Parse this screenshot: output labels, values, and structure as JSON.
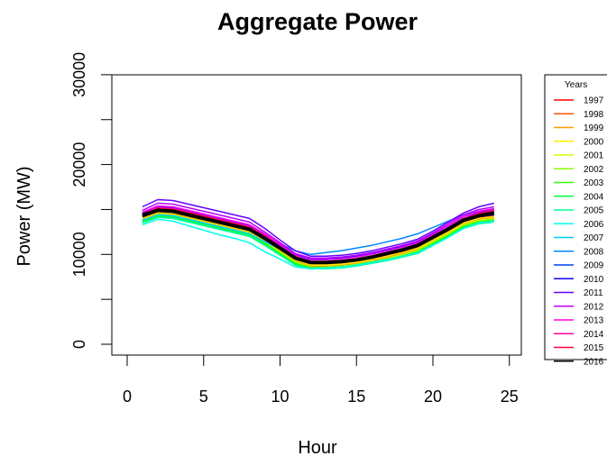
{
  "chart_data": {
    "type": "line",
    "title": "Aggregate Power",
    "xlabel": "Hour",
    "ylabel": "Power (MW)",
    "xlim": [
      0,
      25
    ],
    "ylim": [
      0,
      30000
    ],
    "xticks": [
      "0",
      "5",
      "10",
      "15",
      "20",
      "25"
    ],
    "yticks": [
      "0",
      "10000",
      "20000",
      "30000"
    ],
    "legend_title": "Years",
    "legend_position": "right",
    "grid": false,
    "x": [
      1,
      2,
      3,
      4,
      5,
      6,
      7,
      8,
      9,
      10,
      11,
      12,
      13,
      14,
      15,
      16,
      17,
      18,
      19,
      20,
      21,
      22,
      23,
      24
    ],
    "series": [
      {
        "name": "1997",
        "color": "#FF0000",
        "values": [
          14200,
          14800,
          14700,
          14300,
          13900,
          13500,
          13100,
          12700,
          11700,
          10500,
          9400,
          8800,
          8800,
          8900,
          9100,
          9400,
          9800,
          10300,
          10800,
          11700,
          12600,
          13600,
          14100,
          14300
        ]
      },
      {
        "name": "1998",
        "color": "#FF5500",
        "values": [
          14000,
          14600,
          14500,
          14100,
          13700,
          13300,
          12900,
          12500,
          11500,
          10400,
          9300,
          8700,
          8700,
          8800,
          9000,
          9300,
          9700,
          10100,
          10600,
          11500,
          12400,
          13400,
          13900,
          14100
        ]
      },
      {
        "name": "1999",
        "color": "#FF9900",
        "values": [
          14300,
          14900,
          14800,
          14400,
          14000,
          13600,
          13200,
          12800,
          11800,
          10600,
          9500,
          8900,
          8900,
          9000,
          9200,
          9500,
          9900,
          10400,
          10900,
          11800,
          12700,
          13700,
          14200,
          14400
        ]
      },
      {
        "name": "2000",
        "color": "#FFEE00",
        "values": [
          14100,
          14700,
          14600,
          14200,
          13800,
          13400,
          13000,
          12600,
          11600,
          10500,
          9400,
          8800,
          8800,
          8900,
          9100,
          9400,
          9800,
          10200,
          10700,
          11600,
          12500,
          13500,
          14000,
          14200
        ]
      },
      {
        "name": "2001",
        "color": "#CCFF00",
        "values": [
          13900,
          14500,
          14400,
          14000,
          13600,
          13200,
          12800,
          12400,
          11400,
          10300,
          9200,
          8600,
          8600,
          8700,
          8900,
          9200,
          9600,
          10000,
          10500,
          11400,
          12300,
          13300,
          13800,
          14000
        ]
      },
      {
        "name": "2002",
        "color": "#88FF00",
        "values": [
          13800,
          14400,
          14300,
          13900,
          13500,
          13100,
          12700,
          12300,
          11300,
          10200,
          9100,
          8600,
          8600,
          8700,
          8900,
          9200,
          9500,
          9900,
          10400,
          11300,
          12200,
          13200,
          13700,
          13900
        ]
      },
      {
        "name": "2003",
        "color": "#33FF00",
        "values": [
          13700,
          14300,
          14200,
          13800,
          13400,
          13000,
          12600,
          12200,
          11200,
          10100,
          9000,
          8500,
          8500,
          8600,
          8800,
          9100,
          9400,
          9800,
          10300,
          11200,
          12100,
          13100,
          13600,
          13800
        ]
      },
      {
        "name": "2004",
        "color": "#00FF44",
        "values": [
          13600,
          14200,
          14100,
          13700,
          13300,
          12900,
          12500,
          12100,
          11100,
          10000,
          8900,
          8500,
          8500,
          8600,
          8800,
          9100,
          9400,
          9800,
          10200,
          11100,
          12000,
          13000,
          13500,
          13700
        ]
      },
      {
        "name": "2005",
        "color": "#00FF99",
        "values": [
          13500,
          14100,
          14000,
          13600,
          13200,
          12800,
          12400,
          12000,
          11000,
          9900,
          8800,
          8400,
          8400,
          8500,
          8700,
          9000,
          9300,
          9700,
          10100,
          11000,
          11900,
          12900,
          13400,
          13600
        ]
      },
      {
        "name": "2006",
        "color": "#00FFEE",
        "values": [
          13300,
          13900,
          13700,
          13200,
          12700,
          12200,
          11800,
          11300,
          10300,
          9500,
          8600,
          8400,
          8500,
          8600,
          8800,
          9100,
          9400,
          9800,
          10200,
          11000,
          11900,
          12900,
          13500,
          13700
        ]
      },
      {
        "name": "2007",
        "color": "#00CCFF",
        "values": [
          13800,
          14400,
          14300,
          13900,
          13500,
          13100,
          12700,
          12300,
          11400,
          10600,
          9700,
          9400,
          9500,
          9700,
          9900,
          10200,
          10500,
          10900,
          11400,
          12200,
          13100,
          14000,
          14400,
          14600
        ]
      },
      {
        "name": "2008",
        "color": "#0088FF",
        "values": [
          14500,
          15200,
          15100,
          14700,
          14300,
          13900,
          13500,
          13100,
          12100,
          11200,
          10400,
          10000,
          10200,
          10400,
          10700,
          11000,
          11400,
          11800,
          12300,
          13000,
          13700,
          14400,
          14800,
          15000
        ]
      },
      {
        "name": "2009",
        "color": "#0044FF",
        "values": [
          14200,
          14900,
          14800,
          14400,
          14000,
          13600,
          13200,
          12800,
          11900,
          11000,
          10000,
          9500,
          9500,
          9600,
          9800,
          10100,
          10400,
          10800,
          11300,
          12100,
          12900,
          13800,
          14200,
          14400
        ]
      },
      {
        "name": "2010",
        "color": "#1100FF",
        "values": [
          14600,
          15300,
          15200,
          14800,
          14400,
          14000,
          13600,
          13200,
          12200,
          11100,
          10000,
          9500,
          9500,
          9600,
          9800,
          10100,
          10500,
          10900,
          11400,
          12300,
          13200,
          14200,
          14700,
          14900
        ]
      },
      {
        "name": "2011",
        "color": "#6600FF",
        "values": [
          15300,
          16100,
          16000,
          15600,
          15200,
          14800,
          14400,
          14000,
          12900,
          11600,
          10400,
          9800,
          9800,
          9900,
          10100,
          10400,
          10800,
          11200,
          11700,
          12600,
          13600,
          14600,
          15300,
          15700
        ]
      },
      {
        "name": "2012",
        "color": "#BB00FF",
        "values": [
          14900,
          15700,
          15600,
          15200,
          14800,
          14400,
          14000,
          13600,
          12500,
          11300,
          10100,
          9600,
          9600,
          9700,
          9900,
          10200,
          10600,
          11000,
          11500,
          12400,
          13400,
          14400,
          15000,
          15300
        ]
      },
      {
        "name": "2013",
        "color": "#FF00EE",
        "values": [
          14700,
          15400,
          15300,
          14900,
          14500,
          14100,
          13700,
          13300,
          12300,
          11100,
          9900,
          9400,
          9400,
          9500,
          9700,
          10000,
          10400,
          10800,
          11300,
          12200,
          13200,
          14200,
          14800,
          15100
        ]
      },
      {
        "name": "2014",
        "color": "#FF0099",
        "values": [
          14500,
          15200,
          15100,
          14700,
          14300,
          13900,
          13500,
          13100,
          12100,
          10900,
          9700,
          9200,
          9200,
          9300,
          9500,
          9800,
          10200,
          10600,
          11100,
          12000,
          13000,
          14000,
          14600,
          14900
        ]
      },
      {
        "name": "2015",
        "color": "#FF0044",
        "values": [
          14400,
          15100,
          15000,
          14600,
          14200,
          13800,
          13400,
          13000,
          12000,
          10800,
          9600,
          9100,
          9100,
          9200,
          9400,
          9700,
          10100,
          10500,
          11000,
          11900,
          12900,
          13900,
          14500,
          14800
        ]
      },
      {
        "name": "2016",
        "color": "#000000",
        "values": [
          14500,
          15000,
          14900,
          14500,
          14100,
          13700,
          13300,
          12900,
          11900,
          10700,
          9500,
          9000,
          9000,
          9100,
          9300,
          9600,
          10000,
          10400,
          10900,
          11800,
          12800,
          13800,
          14300,
          14600
        ]
      }
    ],
    "overlay": {
      "color": "#000000",
      "values": [
        14300,
        14900,
        14800,
        14400,
        14000,
        13600,
        13200,
        12800,
        11800,
        10700,
        9600,
        9100,
        9100,
        9200,
        9400,
        9700,
        10100,
        10500,
        11000,
        11900,
        12800,
        13800,
        14300,
        14600
      ]
    }
  }
}
